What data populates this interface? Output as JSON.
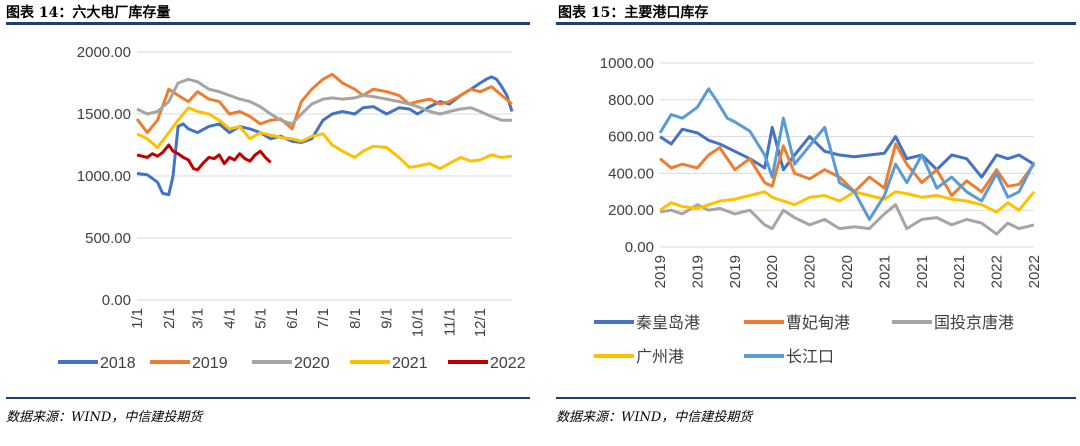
{
  "left": {
    "title": "图表 14：六大电厂库存量",
    "source": "数据来源：WIND，中信建投期货"
  },
  "right": {
    "title": "图表 15：主要港口库存",
    "source": "数据来源：WIND，中信建投期货"
  },
  "chart_data": [
    {
      "type": "line",
      "title": "六大电厂库存量",
      "ylim": [
        0,
        2000
      ],
      "yticks": [
        0,
        500,
        1000,
        1500,
        2000
      ],
      "ytick_labels": [
        "0.00",
        "500.00",
        "1000.00",
        "1500.00",
        "2000.00"
      ],
      "xlim": [
        0,
        365
      ],
      "x_tick_labels": [
        "1/1",
        "2/1",
        "3/1",
        "4/1",
        "5/1",
        "6/1",
        "7/1",
        "8/1",
        "9/1",
        "10/1",
        "11/1",
        "12/1"
      ],
      "x_ticks": [
        0,
        31,
        59,
        90,
        120,
        151,
        181,
        212,
        243,
        273,
        304,
        334
      ],
      "series": [
        {
          "name": "2018",
          "color": "#4472c4",
          "x": [
            0,
            10,
            20,
            25,
            31,
            35,
            40,
            45,
            50,
            59,
            70,
            80,
            90,
            100,
            110,
            120,
            130,
            140,
            151,
            160,
            170,
            181,
            190,
            200,
            212,
            220,
            230,
            243,
            255,
            265,
            273,
            285,
            295,
            304,
            315,
            325,
            334,
            340,
            345,
            350,
            355,
            360,
            365
          ],
          "y": [
            1020,
            1010,
            950,
            860,
            850,
            1000,
            1400,
            1420,
            1380,
            1350,
            1400,
            1420,
            1350,
            1400,
            1380,
            1350,
            1300,
            1320,
            1280,
            1270,
            1300,
            1450,
            1500,
            1520,
            1500,
            1550,
            1560,
            1500,
            1550,
            1540,
            1500,
            1560,
            1600,
            1580,
            1650,
            1700,
            1750,
            1780,
            1800,
            1780,
            1720,
            1650,
            1520
          ]
        },
        {
          "name": "2019",
          "color": "#ed7d31",
          "x": [
            0,
            10,
            20,
            31,
            40,
            50,
            59,
            70,
            80,
            90,
            100,
            110,
            120,
            130,
            140,
            151,
            160,
            170,
            181,
            190,
            200,
            212,
            220,
            230,
            243,
            255,
            265,
            273,
            285,
            295,
            304,
            315,
            325,
            334,
            345,
            355,
            365
          ],
          "y": [
            1460,
            1350,
            1450,
            1700,
            1650,
            1600,
            1680,
            1620,
            1600,
            1500,
            1520,
            1480,
            1420,
            1450,
            1460,
            1380,
            1600,
            1700,
            1780,
            1820,
            1750,
            1700,
            1650,
            1700,
            1680,
            1650,
            1580,
            1600,
            1620,
            1580,
            1600,
            1650,
            1700,
            1680,
            1720,
            1650,
            1580
          ]
        },
        {
          "name": "2020",
          "color": "#a5a5a5",
          "x": [
            0,
            10,
            20,
            31,
            40,
            50,
            59,
            70,
            80,
            90,
            100,
            110,
            120,
            130,
            140,
            151,
            160,
            170,
            181,
            190,
            200,
            212,
            220,
            230,
            243,
            255,
            265,
            273,
            285,
            295,
            304,
            315,
            325,
            334,
            345,
            355,
            365
          ],
          "y": [
            1540,
            1500,
            1520,
            1600,
            1750,
            1780,
            1760,
            1700,
            1680,
            1650,
            1620,
            1600,
            1560,
            1500,
            1450,
            1420,
            1500,
            1580,
            1620,
            1630,
            1620,
            1630,
            1650,
            1640,
            1620,
            1600,
            1580,
            1560,
            1520,
            1500,
            1520,
            1540,
            1550,
            1520,
            1480,
            1450,
            1450
          ]
        },
        {
          "name": "2021",
          "color": "#ffc000",
          "x": [
            0,
            10,
            20,
            31,
            40,
            50,
            59,
            70,
            80,
            90,
            100,
            110,
            120,
            130,
            140,
            151,
            160,
            170,
            181,
            190,
            200,
            212,
            220,
            230,
            243,
            255,
            265,
            273,
            285,
            295,
            304,
            315,
            325,
            334,
            345,
            355,
            365
          ],
          "y": [
            1340,
            1300,
            1230,
            1350,
            1450,
            1550,
            1520,
            1500,
            1450,
            1380,
            1400,
            1300,
            1350,
            1330,
            1310,
            1300,
            1280,
            1320,
            1340,
            1250,
            1200,
            1150,
            1200,
            1240,
            1230,
            1150,
            1070,
            1080,
            1100,
            1060,
            1100,
            1150,
            1120,
            1130,
            1170,
            1150,
            1160
          ]
        },
        {
          "name": "2022",
          "color": "#c00000",
          "x": [
            0,
            5,
            10,
            15,
            20,
            25,
            31,
            35,
            40,
            45,
            50,
            55,
            59,
            65,
            70,
            75,
            80,
            85,
            90,
            95,
            100,
            105,
            110,
            115,
            120,
            125,
            130
          ],
          "y": [
            1170,
            1160,
            1150,
            1180,
            1160,
            1190,
            1250,
            1200,
            1180,
            1150,
            1130,
            1060,
            1050,
            1110,
            1150,
            1140,
            1170,
            1100,
            1150,
            1130,
            1180,
            1140,
            1120,
            1170,
            1200,
            1150,
            1110
          ]
        }
      ]
    },
    {
      "type": "line",
      "title": "主要港口库存",
      "ylim": [
        0,
        1000
      ],
      "yticks": [
        0,
        200,
        400,
        600,
        800,
        1000
      ],
      "ytick_labels": [
        "0.00",
        "200.00",
        "400.00",
        "600.00",
        "800.00",
        "1000.00"
      ],
      "xlim": [
        0,
        1
      ],
      "x_tick_labels": [
        "2019",
        "2019",
        "2019",
        "2020",
        "2020",
        "2020",
        "2021",
        "2021",
        "2021",
        "2022",
        "2022"
      ],
      "x_ticks": [
        0,
        0.1,
        0.2,
        0.3,
        0.4,
        0.5,
        0.6,
        0.7,
        0.8,
        0.9,
        1.0
      ],
      "series": [
        {
          "name": "秦皇岛港",
          "color": "#4472c4",
          "x": [
            0,
            0.03,
            0.06,
            0.1,
            0.13,
            0.16,
            0.2,
            0.24,
            0.28,
            0.3,
            0.33,
            0.36,
            0.4,
            0.44,
            0.48,
            0.52,
            0.56,
            0.6,
            0.63,
            0.66,
            0.7,
            0.74,
            0.78,
            0.82,
            0.86,
            0.9,
            0.93,
            0.96,
            1.0
          ],
          "y": [
            600,
            560,
            640,
            620,
            580,
            560,
            520,
            480,
            430,
            650,
            420,
            500,
            600,
            520,
            500,
            490,
            500,
            510,
            600,
            480,
            500,
            420,
            500,
            480,
            380,
            500,
            480,
            500,
            450
          ]
        },
        {
          "name": "曹妃甸港",
          "color": "#ed7d31",
          "x": [
            0,
            0.03,
            0.06,
            0.1,
            0.13,
            0.16,
            0.2,
            0.24,
            0.28,
            0.3,
            0.33,
            0.36,
            0.4,
            0.44,
            0.48,
            0.52,
            0.56,
            0.6,
            0.63,
            0.66,
            0.7,
            0.74,
            0.78,
            0.82,
            0.86,
            0.9,
            0.93,
            0.96,
            1.0
          ],
          "y": [
            480,
            430,
            450,
            430,
            500,
            540,
            420,
            480,
            350,
            330,
            550,
            400,
            370,
            420,
            380,
            300,
            380,
            320,
            560,
            450,
            350,
            420,
            280,
            360,
            300,
            420,
            330,
            340,
            450
          ]
        },
        {
          "name": "国投京唐港",
          "color": "#a5a5a5",
          "x": [
            0,
            0.03,
            0.06,
            0.1,
            0.13,
            0.16,
            0.2,
            0.24,
            0.28,
            0.3,
            0.33,
            0.36,
            0.4,
            0.44,
            0.48,
            0.52,
            0.56,
            0.6,
            0.63,
            0.66,
            0.7,
            0.74,
            0.78,
            0.82,
            0.86,
            0.9,
            0.93,
            0.96,
            1.0
          ],
          "y": [
            190,
            200,
            180,
            230,
            200,
            210,
            180,
            200,
            120,
            100,
            200,
            160,
            120,
            150,
            100,
            110,
            100,
            180,
            230,
            100,
            150,
            160,
            120,
            150,
            130,
            70,
            130,
            100,
            120
          ]
        },
        {
          "name": "广州港",
          "color": "#ffc000",
          "x": [
            0,
            0.03,
            0.06,
            0.1,
            0.13,
            0.16,
            0.2,
            0.24,
            0.28,
            0.3,
            0.33,
            0.36,
            0.4,
            0.44,
            0.48,
            0.52,
            0.56,
            0.6,
            0.63,
            0.66,
            0.7,
            0.74,
            0.78,
            0.82,
            0.86,
            0.9,
            0.93,
            0.96,
            1.0
          ],
          "y": [
            200,
            240,
            220,
            210,
            230,
            250,
            260,
            280,
            300,
            270,
            250,
            230,
            270,
            280,
            250,
            300,
            280,
            260,
            300,
            290,
            270,
            280,
            260,
            250,
            230,
            190,
            240,
            200,
            300
          ]
        },
        {
          "name": "长江口",
          "color": "#5b9bd5",
          "x": [
            0,
            0.03,
            0.06,
            0.1,
            0.13,
            0.15,
            0.18,
            0.2,
            0.24,
            0.28,
            0.3,
            0.33,
            0.36,
            0.4,
            0.44,
            0.48,
            0.52,
            0.56,
            0.6,
            0.63,
            0.66,
            0.7,
            0.74,
            0.78,
            0.82,
            0.86,
            0.9,
            0.93,
            0.96,
            1.0
          ],
          "y": [
            620,
            720,
            700,
            760,
            860,
            800,
            700,
            680,
            630,
            500,
            380,
            700,
            450,
            550,
            650,
            350,
            300,
            150,
            280,
            450,
            350,
            500,
            320,
            380,
            300,
            250,
            400,
            270,
            300,
            460
          ]
        }
      ]
    }
  ]
}
